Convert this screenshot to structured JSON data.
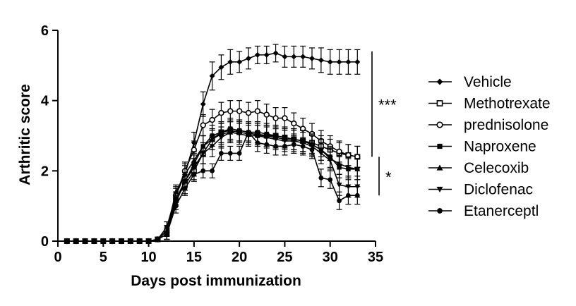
{
  "chart_data": {
    "type": "line",
    "title": "",
    "xlabel": "Days post immunization",
    "ylabel": "Arthritic score",
    "xlim": [
      0,
      35
    ],
    "ylim": [
      0,
      6
    ],
    "x_ticks": [
      0,
      5,
      10,
      15,
      20,
      25,
      30,
      35
    ],
    "y_ticks": [
      0,
      2,
      4,
      6
    ],
    "x_tick_labels": [
      "0",
      "5",
      "10",
      "15",
      "20",
      "25",
      "30",
      "35"
    ],
    "y_tick_labels": [
      "0",
      "2",
      "4",
      "6"
    ],
    "grid": false,
    "legend_position": "right",
    "x": [
      1,
      2,
      3,
      4,
      5,
      6,
      7,
      8,
      9,
      10,
      11,
      12,
      13,
      14,
      15,
      16,
      17,
      18,
      19,
      20,
      21,
      22,
      23,
      24,
      25,
      26,
      27,
      28,
      29,
      30,
      31,
      32,
      33
    ],
    "series": [
      {
        "name": "Vehicle",
        "marker": "diamond",
        "values": [
          0,
          0,
          0,
          0,
          0,
          0,
          0,
          0,
          0,
          0,
          0.05,
          0.4,
          1.3,
          1.9,
          2.8,
          3.9,
          4.7,
          4.95,
          5.1,
          5.1,
          5.2,
          5.3,
          5.3,
          5.35,
          5.25,
          5.25,
          5.25,
          5.2,
          5.15,
          5.1,
          5.1,
          5.1,
          5.1
        ],
        "errors": [
          0,
          0,
          0,
          0,
          0,
          0,
          0,
          0,
          0,
          0,
          0.05,
          0.15,
          0.25,
          0.3,
          0.3,
          0.35,
          0.4,
          0.35,
          0.35,
          0.3,
          0.3,
          0.25,
          0.25,
          0.25,
          0.3,
          0.3,
          0.3,
          0.3,
          0.35,
          0.35,
          0.35,
          0.35,
          0.35
        ]
      },
      {
        "name": "Methotrexate",
        "marker": "square-open",
        "values": [
          0,
          0,
          0,
          0,
          0,
          0,
          0,
          0,
          0,
          0,
          0.05,
          0.2,
          1.2,
          1.6,
          2.0,
          2.5,
          2.9,
          3.1,
          3.15,
          3.1,
          3.05,
          3.05,
          3.0,
          3.0,
          2.95,
          2.9,
          2.85,
          2.8,
          2.7,
          2.6,
          2.5,
          2.45,
          2.4
        ],
        "errors": [
          0,
          0,
          0,
          0,
          0,
          0,
          0,
          0,
          0,
          0,
          0.05,
          0.15,
          0.2,
          0.25,
          0.25,
          0.3,
          0.3,
          0.3,
          0.3,
          0.3,
          0.3,
          0.3,
          0.3,
          0.3,
          0.3,
          0.3,
          0.3,
          0.3,
          0.3,
          0.3,
          0.3,
          0.3,
          0.3
        ]
      },
      {
        "name": "prednisolone",
        "marker": "circle-open",
        "values": [
          0,
          0,
          0,
          0,
          0,
          0,
          0,
          0,
          0,
          0,
          0.05,
          0.3,
          1.3,
          2.0,
          2.6,
          3.3,
          3.45,
          3.65,
          3.7,
          3.7,
          3.65,
          3.7,
          3.6,
          3.5,
          3.5,
          3.35,
          3.2,
          3.05,
          2.85,
          2.7,
          2.55,
          2.45,
          2.4
        ],
        "errors": [
          0,
          0,
          0,
          0,
          0,
          0,
          0,
          0,
          0,
          0,
          0.05,
          0.15,
          0.2,
          0.25,
          0.25,
          0.3,
          0.3,
          0.3,
          0.3,
          0.3,
          0.3,
          0.3,
          0.3,
          0.3,
          0.3,
          0.3,
          0.3,
          0.3,
          0.3,
          0.3,
          0.3,
          0.3,
          0.3
        ]
      },
      {
        "name": "Naproxene",
        "marker": "square",
        "values": [
          0,
          0,
          0,
          0,
          0,
          0,
          0,
          0,
          0,
          0,
          0.05,
          0.2,
          1.2,
          1.7,
          2.2,
          2.7,
          3.0,
          3.1,
          3.2,
          3.15,
          3.1,
          3.1,
          3.05,
          3.0,
          2.95,
          2.9,
          2.85,
          2.75,
          2.6,
          2.4,
          2.1,
          2.05,
          2.05
        ],
        "errors": [
          0,
          0,
          0,
          0,
          0,
          0,
          0,
          0,
          0,
          0,
          0.05,
          0.15,
          0.2,
          0.25,
          0.25,
          0.3,
          0.3,
          0.3,
          0.3,
          0.3,
          0.3,
          0.3,
          0.3,
          0.3,
          0.3,
          0.3,
          0.3,
          0.3,
          0.3,
          0.3,
          0.3,
          0.3,
          0.3
        ]
      },
      {
        "name": "Celecoxib",
        "marker": "triangle",
        "values": [
          0,
          0,
          0,
          0,
          0,
          0,
          0,
          0,
          0,
          0,
          0.05,
          0.3,
          1.4,
          1.9,
          2.3,
          2.7,
          2.9,
          3.05,
          3.1,
          3.15,
          3.1,
          3.0,
          3.0,
          2.95,
          2.9,
          2.9,
          2.85,
          2.75,
          2.6,
          2.35,
          2.2,
          2.1,
          2.05
        ],
        "errors": [
          0,
          0,
          0,
          0,
          0,
          0,
          0,
          0,
          0,
          0,
          0.05,
          0.15,
          0.2,
          0.25,
          0.25,
          0.3,
          0.3,
          0.3,
          0.3,
          0.3,
          0.3,
          0.3,
          0.3,
          0.3,
          0.3,
          0.3,
          0.3,
          0.3,
          0.3,
          0.3,
          0.3,
          0.3,
          0.3
        ]
      },
      {
        "name": "Diclofenac",
        "marker": "triangle-down",
        "values": [
          0,
          0,
          0,
          0,
          0,
          0,
          0,
          0,
          0,
          0,
          0.05,
          0.2,
          1.1,
          1.7,
          2.1,
          2.5,
          2.7,
          2.95,
          3.1,
          3.05,
          3.0,
          3.0,
          2.95,
          2.9,
          2.85,
          2.85,
          2.8,
          2.7,
          2.5,
          2.3,
          1.6,
          1.55,
          1.55
        ],
        "errors": [
          0,
          0,
          0,
          0,
          0,
          0,
          0,
          0,
          0,
          0,
          0.05,
          0.15,
          0.2,
          0.25,
          0.25,
          0.3,
          0.3,
          0.3,
          0.3,
          0.3,
          0.3,
          0.3,
          0.3,
          0.3,
          0.3,
          0.3,
          0.3,
          0.3,
          0.3,
          0.3,
          0.3,
          0.3,
          0.3
        ]
      },
      {
        "name": "Etanerceptl",
        "marker": "circle",
        "values": [
          0,
          0,
          0,
          0,
          0,
          0,
          0,
          0,
          0,
          0,
          0.05,
          0.2,
          1.0,
          1.5,
          1.9,
          2.0,
          2.0,
          2.5,
          2.5,
          2.5,
          3.1,
          2.8,
          2.75,
          2.7,
          2.7,
          2.75,
          2.7,
          2.6,
          1.8,
          1.75,
          1.15,
          1.3,
          1.3
        ],
        "errors": [
          0,
          0,
          0,
          0,
          0,
          0,
          0,
          0,
          0,
          0,
          0.05,
          0.15,
          0.2,
          0.2,
          0.2,
          0.2,
          0.2,
          0.2,
          0.2,
          0.2,
          0.25,
          0.25,
          0.25,
          0.25,
          0.25,
          0.25,
          0.25,
          0.25,
          0.25,
          0.25,
          0.25,
          0.25,
          0.25
        ]
      }
    ],
    "annotations": [
      {
        "text": "***",
        "y_range": [
          2.4,
          5.4
        ]
      },
      {
        "text": "*",
        "y_range": [
          1.3,
          2.4
        ]
      }
    ]
  }
}
